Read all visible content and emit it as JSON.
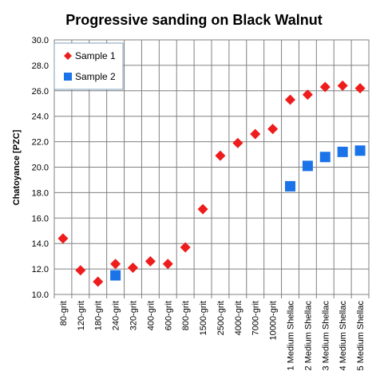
{
  "chart_data": {
    "type": "scatter",
    "title": "Progressive sanding  on Black Walnut",
    "xlabel": "",
    "ylabel": "Chatoyance  [PZC]",
    "ylim": [
      10.0,
      30.0
    ],
    "yticks": [
      "10.0",
      "12.0",
      "14.0",
      "16.0",
      "18.0",
      "20.0",
      "22.0",
      "24.0",
      "26.0",
      "28.0",
      "30.0"
    ],
    "grid": "vertical and horizontal",
    "legend_position": "top-left",
    "categories": [
      "80-grit",
      "120-grit",
      "180-grit",
      "240-grit",
      "320-grit",
      "400-grit",
      "600-grit",
      "800-grit",
      "1500-grit",
      "2500-grit",
      "4000-grit",
      "7000-grit",
      "10000-grit",
      "1 Medium Shellac",
      "2 Medium Shellac",
      "3 Medium Shellac",
      "4 Medium Shellac",
      "5 Medium Shellac"
    ],
    "series": [
      {
        "name": "Sample 1",
        "marker": "diamond",
        "color": "#ee1c1c",
        "values": [
          14.4,
          11.9,
          11.0,
          12.4,
          12.1,
          12.6,
          12.4,
          13.7,
          16.7,
          20.9,
          21.9,
          22.6,
          23.0,
          25.3,
          25.7,
          26.3,
          26.4,
          26.2
        ]
      },
      {
        "name": "Sample 2",
        "marker": "square",
        "color": "#1a73e8",
        "values": [
          null,
          null,
          null,
          11.5,
          null,
          null,
          null,
          null,
          null,
          null,
          null,
          null,
          null,
          18.5,
          20.1,
          20.8,
          21.2,
          21.3
        ]
      }
    ]
  }
}
